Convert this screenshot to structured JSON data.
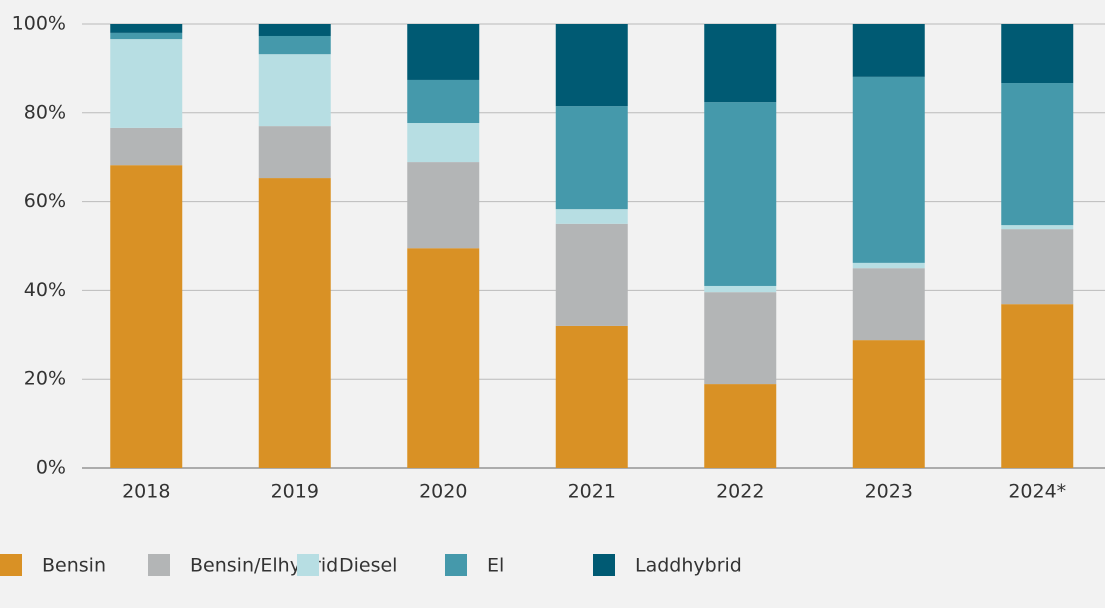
{
  "chart_data": {
    "type": "stacked_bar",
    "categories": [
      "2018",
      "2019",
      "2020",
      "2021",
      "2022",
      "2023",
      "2024*"
    ],
    "series": [
      {
        "name": "Bensin",
        "color": "#d99125",
        "values": [
          68.2,
          65.3,
          49.5,
          32.0,
          18.9,
          28.8,
          36.9
        ]
      },
      {
        "name": "Bensin/Elhybrid",
        "color": "#b3b5b6",
        "values": [
          8.4,
          11.7,
          19.4,
          23.0,
          20.7,
          16.2,
          16.9
        ]
      },
      {
        "name": "Diesel",
        "color": "#b7dee3",
        "values": [
          20.0,
          16.2,
          8.8,
          3.3,
          1.4,
          1.2,
          0.9
        ]
      },
      {
        "name": "El",
        "color": "#4599ab",
        "values": [
          1.4,
          4.1,
          9.7,
          23.2,
          41.4,
          41.9,
          32.0
        ]
      },
      {
        "name": "Laddhybrid",
        "color": "#005a73",
        "values": [
          2.0,
          2.7,
          12.6,
          18.5,
          17.6,
          11.9,
          13.3
        ]
      }
    ],
    "ylim": [
      0,
      100
    ],
    "yticks": [
      {
        "value": 0,
        "label": "0%"
      },
      {
        "value": 20,
        "label": "20%"
      },
      {
        "value": 40,
        "label": "40%"
      },
      {
        "value": 60,
        "label": "60%"
      },
      {
        "value": 80,
        "label": "80%"
      },
      {
        "value": 100,
        "label": "100%"
      }
    ],
    "grid": true,
    "legend": "bottom"
  }
}
